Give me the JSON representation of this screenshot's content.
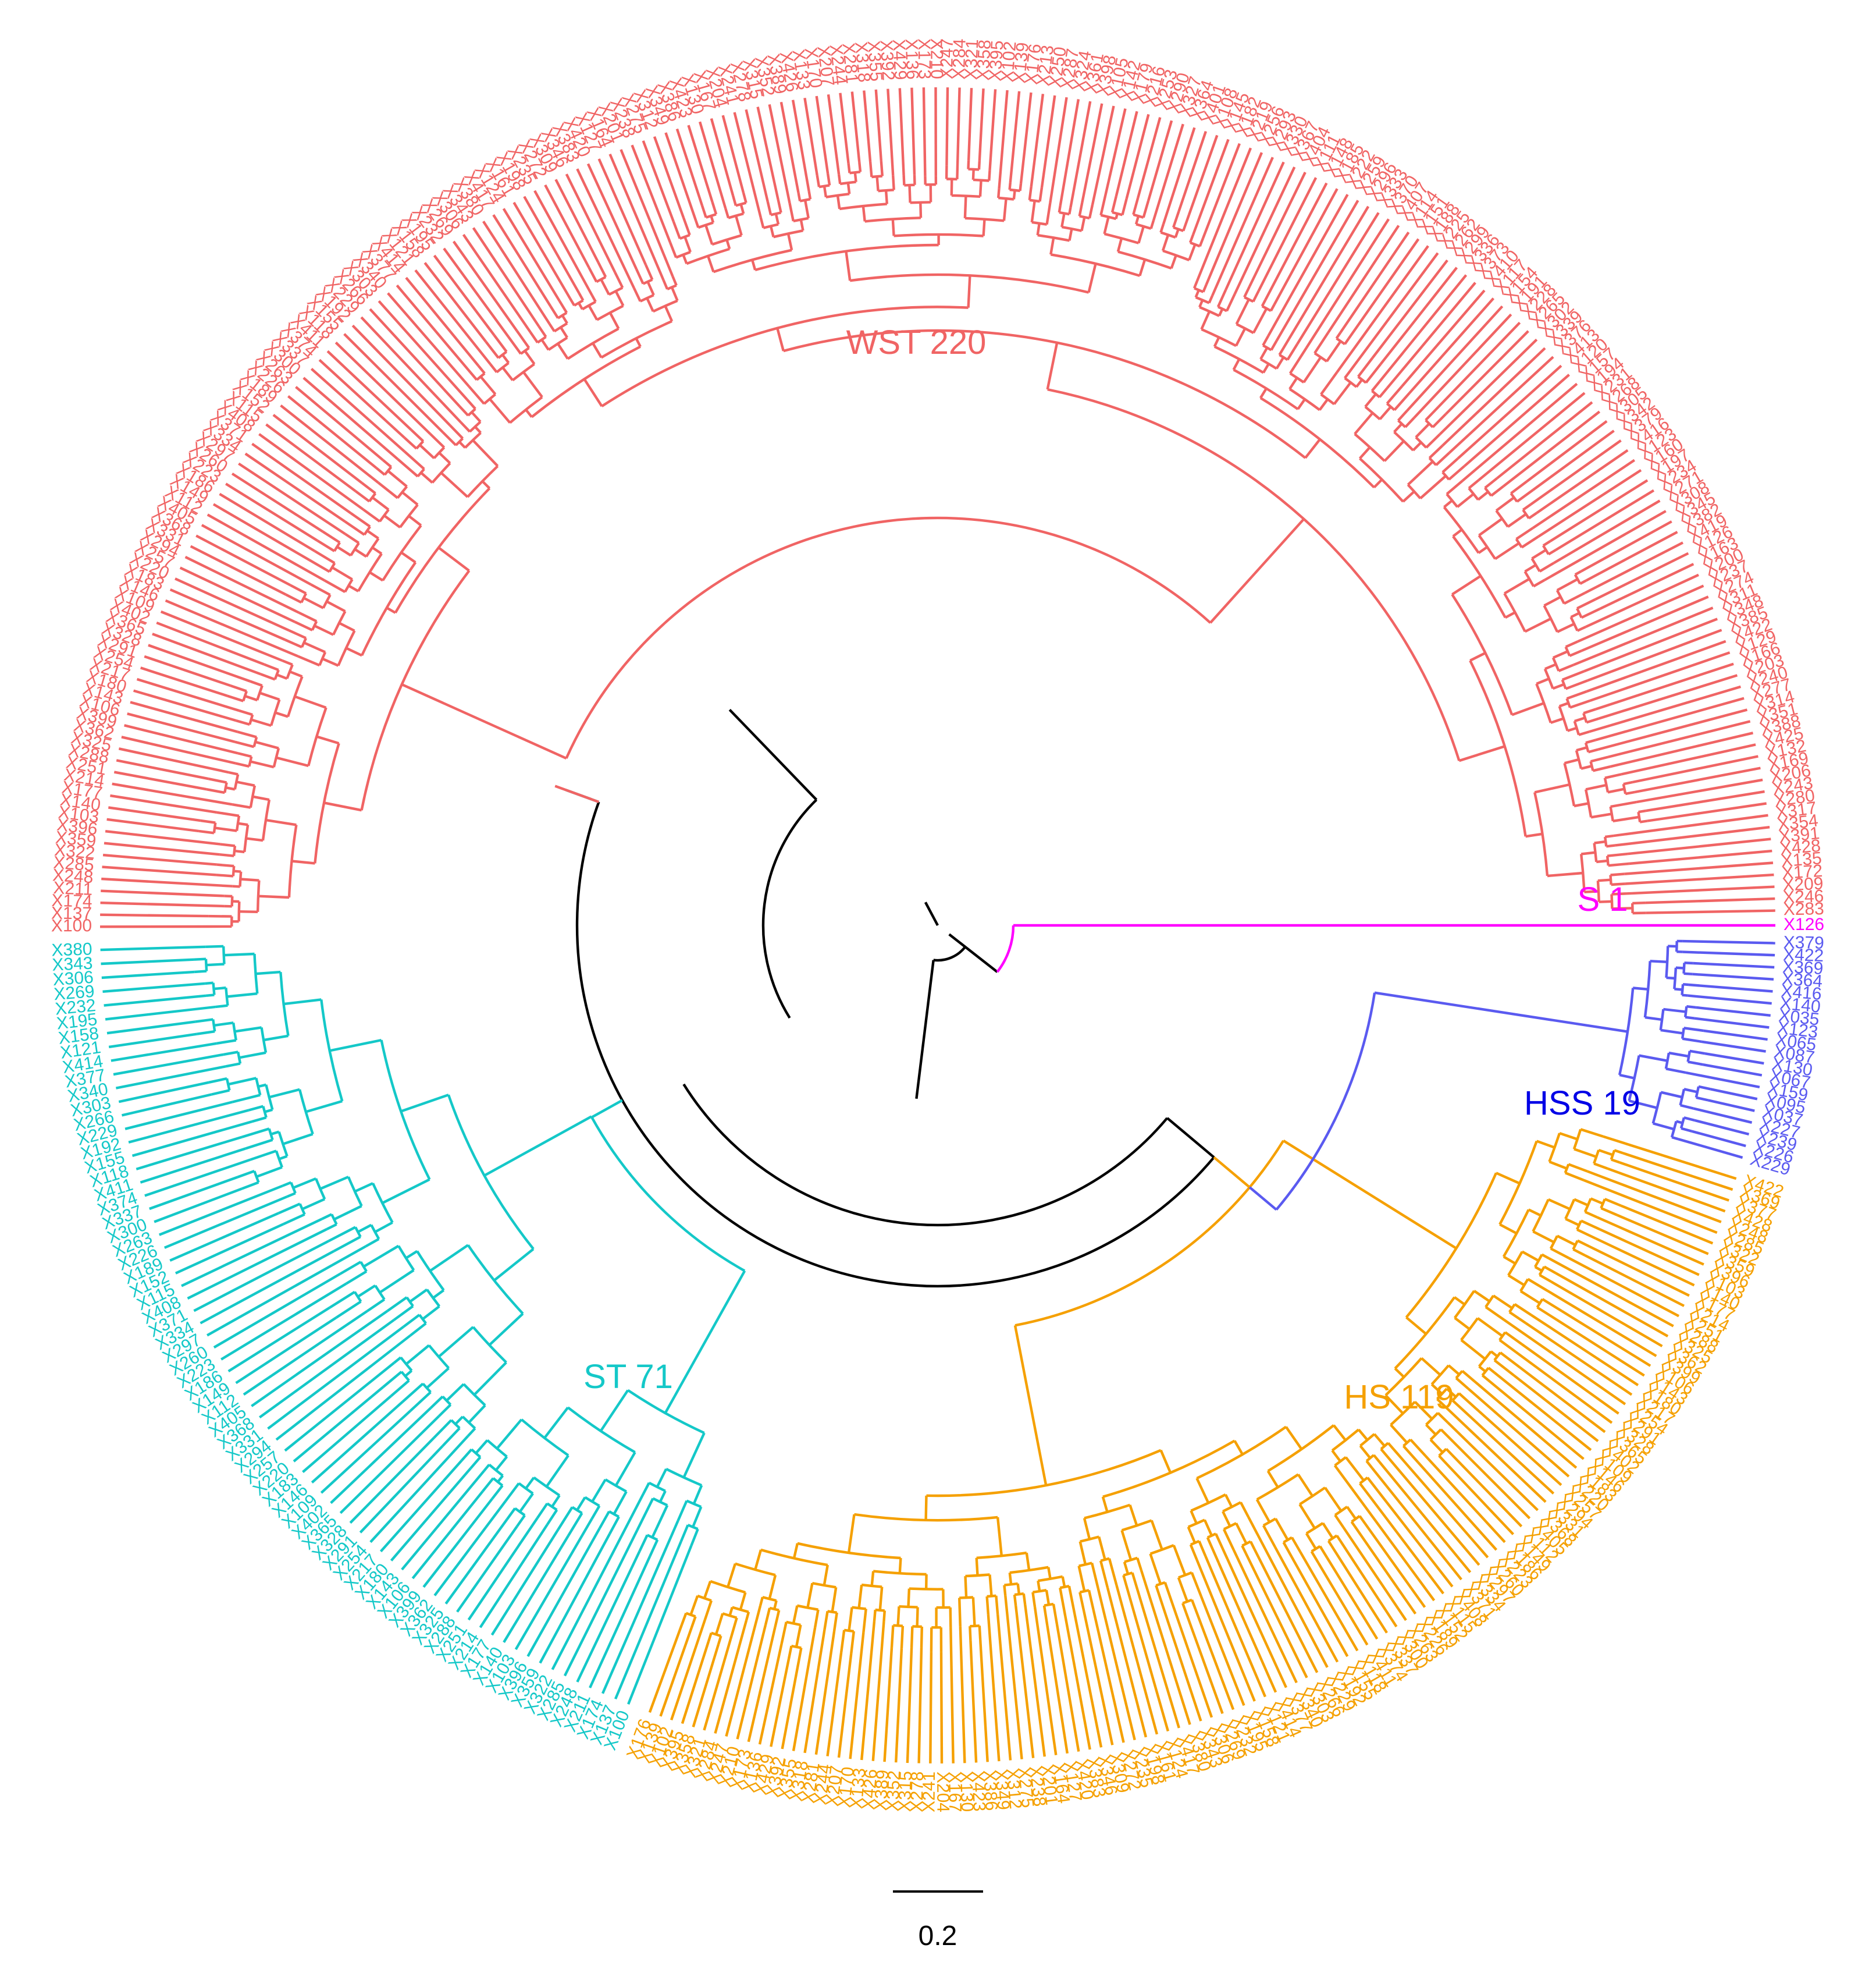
{
  "colors": {
    "backbone": "#000000",
    "S 1": "#ff00ff",
    "HSS 19": "#5a5af0",
    "HS 119": "#f5a000",
    "ST 71": "#14c8c8",
    "WST 220": "#f06464"
  },
  "clusters": [
    {
      "name": "S 1",
      "color": "#ff00ff",
      "label_color": "#ff00ff",
      "tip_count": 1
    },
    {
      "name": "HSS 19",
      "color": "#5a5af0",
      "label_color": "#0000e6",
      "tip_count": 19
    },
    {
      "name": "HS 119",
      "color": "#f5a000",
      "label_color": "#f5a000",
      "tip_count": 119
    },
    {
      "name": "ST 71",
      "color": "#14c8c8",
      "label_color": "#14c8c8",
      "tip_count": 71
    },
    {
      "name": "WST 220",
      "color": "#f06464",
      "label_color": "#f06464",
      "tip_count": 220
    }
  ],
  "visible_tip_labels": [
    "X126",
    "X379",
    "X422",
    "X369",
    "X364",
    "X416",
    "X140",
    "X035",
    "X123",
    "X065",
    "X087",
    "X130",
    "X067",
    "X159",
    "X095",
    "X037",
    "X227",
    "X239",
    "X226",
    "X229",
    "X422",
    "X369",
    "X377",
    "X428"
  ],
  "scale_bar": {
    "label": "0.2"
  }
}
